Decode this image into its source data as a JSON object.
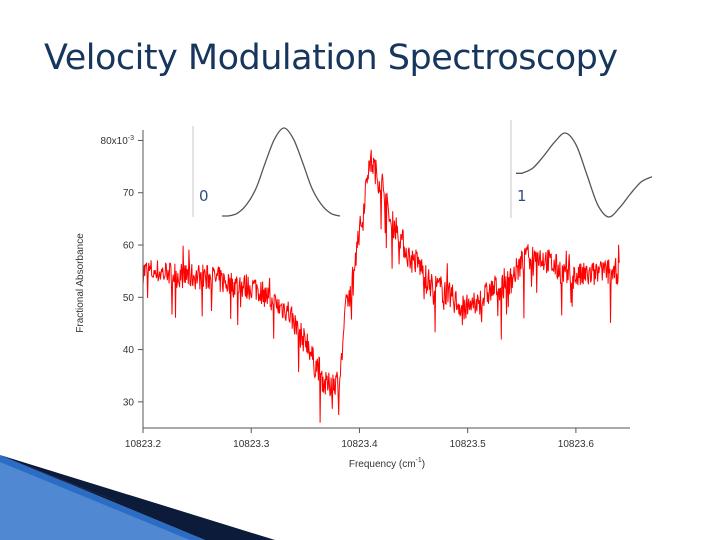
{
  "slide": {
    "title": "Velocity Modulation Spectroscopy",
    "colors": {
      "title": "#17365d",
      "trace": "#ff0000",
      "inset": "#555555",
      "wedge_blue": "#2b6cc4",
      "wedge_dark": "#0d1b3a"
    }
  },
  "chart_data": [
    {
      "type": "line",
      "title": "",
      "xlabel": "Frequency (cm",
      "xlabel_sup": "-1",
      "xlabel_end": ")",
      "ylabel": "Fractional Absorbance",
      "y_multiplier": "x10",
      "y_multiplier_sup": "-3",
      "xlim": [
        10823.2,
        10823.65
      ],
      "ylim": [
        25,
        82
      ],
      "xticks": [
        10823.2,
        10823.3,
        10823.4,
        10823.5,
        10823.6
      ],
      "xtick_labels": [
        "10823.2",
        "10823.3",
        "10823.4",
        "10823.5",
        "10823.6"
      ],
      "yticks": [
        30,
        40,
        50,
        60,
        70,
        80
      ],
      "ytick_labels": [
        "30",
        "40",
        "50",
        "60",
        "70",
        "80"
      ],
      "grid": false,
      "series": [
        {
          "color": "#ff0000",
          "noise_amplitude": 2.6,
          "x": [
            10823.2,
            10823.25,
            10823.3,
            10823.33,
            10823.35,
            10823.36,
            10823.37,
            10823.38,
            10823.39,
            10823.4,
            10823.41,
            10823.42,
            10823.43,
            10823.45,
            10823.47,
            10823.5,
            10823.53,
            10823.56,
            10823.6,
            10823.64
          ],
          "y": [
            55,
            54,
            52,
            48,
            42,
            37,
            33,
            34,
            50,
            63,
            76,
            72,
            64,
            57,
            52,
            48,
            52,
            58,
            54,
            55
          ]
        }
      ]
    },
    {
      "type": "line",
      "title": "",
      "label": "0",
      "description": "zeroth derivative lineshape (Gaussian)",
      "x": [
        -3,
        -2.5,
        -2,
        -1.5,
        -1,
        -0.5,
        0,
        0.5,
        1,
        1.5,
        2,
        2.5,
        3
      ],
      "y": [
        0.01,
        0.04,
        0.14,
        0.32,
        0.61,
        0.88,
        1.0,
        0.88,
        0.61,
        0.32,
        0.14,
        0.04,
        0.01
      ],
      "color": "#555555"
    },
    {
      "type": "line",
      "title": "",
      "label": "1",
      "description": "first derivative lineshape",
      "x": [
        -3,
        -2.5,
        -2,
        -1.5,
        -1,
        -0.5,
        0,
        0.5,
        1,
        1.5,
        2,
        2.5,
        3
      ],
      "y": [
        0.03,
        0.12,
        0.33,
        0.57,
        0.73,
        0.52,
        0,
        -0.52,
        -0.73,
        -0.57,
        -0.33,
        -0.12,
        -0.03
      ],
      "color": "#555555"
    }
  ]
}
